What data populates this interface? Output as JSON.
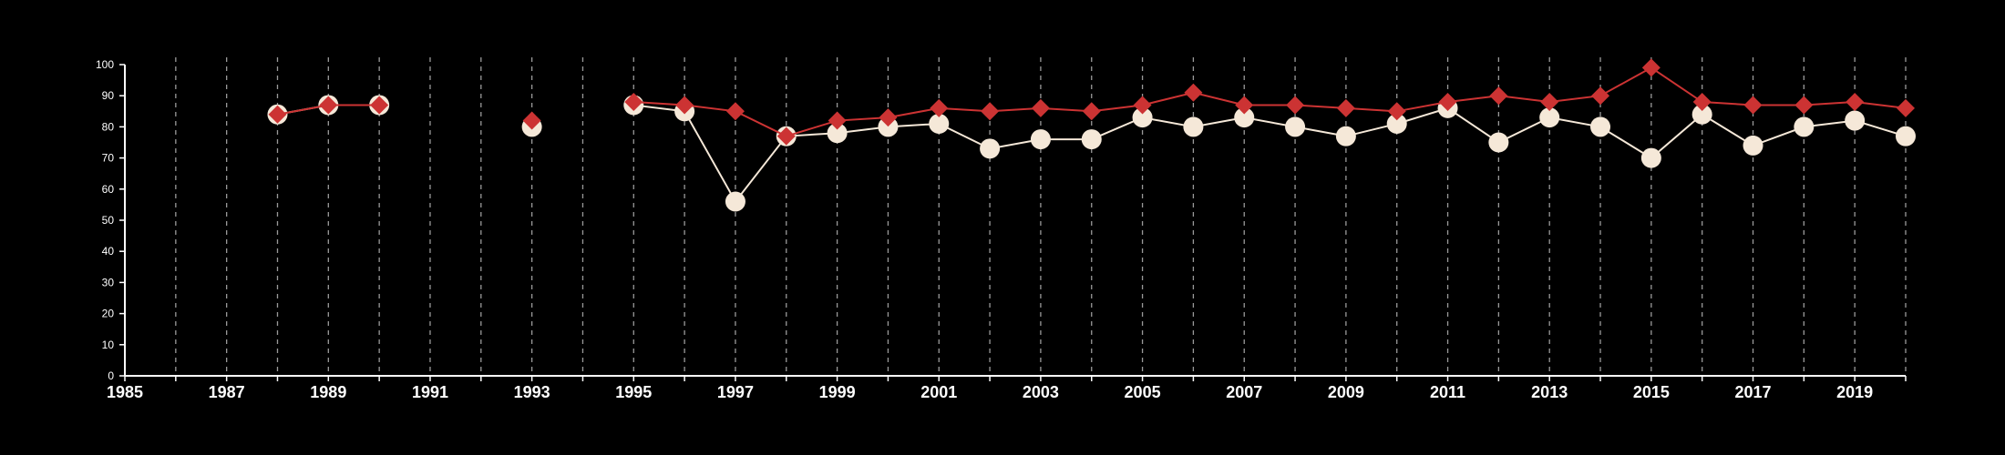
{
  "chart_data": {
    "type": "line",
    "title": "",
    "xlabel": "",
    "ylabel": "",
    "xlim": [
      1985,
      2020
    ],
    "ylim": [
      0,
      100
    ],
    "x_ticks": [
      1985,
      1987,
      1989,
      1991,
      1993,
      1995,
      1997,
      1999,
      2001,
      2003,
      2005,
      2007,
      2009,
      2011,
      2013,
      2015,
      2017,
      2019
    ],
    "y_ticks": [
      0,
      10,
      20,
      30,
      40,
      50,
      60,
      70,
      80,
      90,
      100
    ],
    "grid": "vertical dashed lines at every year",
    "legend": "none",
    "background": "#000000",
    "axis_color": "#ffffff",
    "x": [
      1988,
      1989,
      1990,
      1993,
      1995,
      1996,
      1997,
      1998,
      1999,
      2000,
      2001,
      2002,
      2003,
      2004,
      2005,
      2006,
      2007,
      2008,
      2009,
      2010,
      2011,
      2012,
      2013,
      2014,
      2015,
      2016,
      2017,
      2018,
      2019,
      2020
    ],
    "series": [
      {
        "marker": "circle",
        "color": "#f5e8d8",
        "values": [
          84,
          87,
          87,
          80,
          87,
          85,
          56,
          77,
          78,
          80,
          81,
          73,
          76,
          76,
          83,
          80,
          83,
          80,
          77,
          81,
          86,
          75,
          83,
          80,
          70,
          84,
          74,
          80,
          82,
          77
        ]
      },
      {
        "marker": "diamond",
        "color": "#cc3333",
        "values": [
          84,
          87,
          87,
          82,
          88,
          87,
          85,
          77,
          82,
          83,
          86,
          85,
          86,
          85,
          87,
          91,
          87,
          87,
          86,
          85,
          88,
          90,
          88,
          90,
          99,
          88,
          87,
          87,
          88,
          86
        ]
      }
    ]
  }
}
